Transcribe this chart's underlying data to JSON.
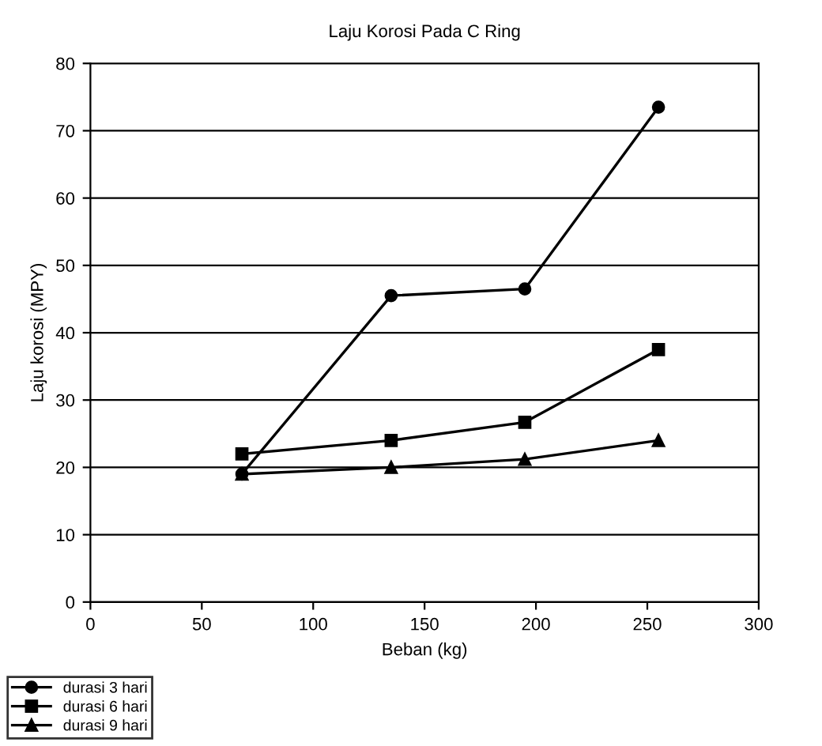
{
  "chart_data": {
    "type": "line",
    "title": "Laju Korosi Pada C Ring",
    "xlabel": "Beban (kg)",
    "ylabel": "Laju korosi (MPY)",
    "x": [
      68,
      135,
      195,
      255
    ],
    "series": [
      {
        "name": "durasi 3 hari",
        "color": "#000000",
        "marker": "circle",
        "values": [
          19,
          45.5,
          46.5,
          73.5
        ]
      },
      {
        "name": "durasi 6 hari",
        "color": "#000000",
        "marker": "square",
        "values": [
          22,
          24,
          26.7,
          37.5
        ]
      },
      {
        "name": "durasi 9 hari",
        "color": "#000000",
        "marker": "triangle",
        "values": [
          19,
          20,
          21.2,
          24
        ]
      }
    ],
    "xlim": [
      0,
      300
    ],
    "xticks": [
      0,
      50,
      100,
      150,
      200,
      250,
      300
    ],
    "ylim": [
      0,
      80
    ],
    "yticks": [
      0,
      10,
      20,
      30,
      40,
      50,
      60,
      70,
      80
    ],
    "grid": "y",
    "legend": "bottom left",
    "line_style": "solid"
  }
}
